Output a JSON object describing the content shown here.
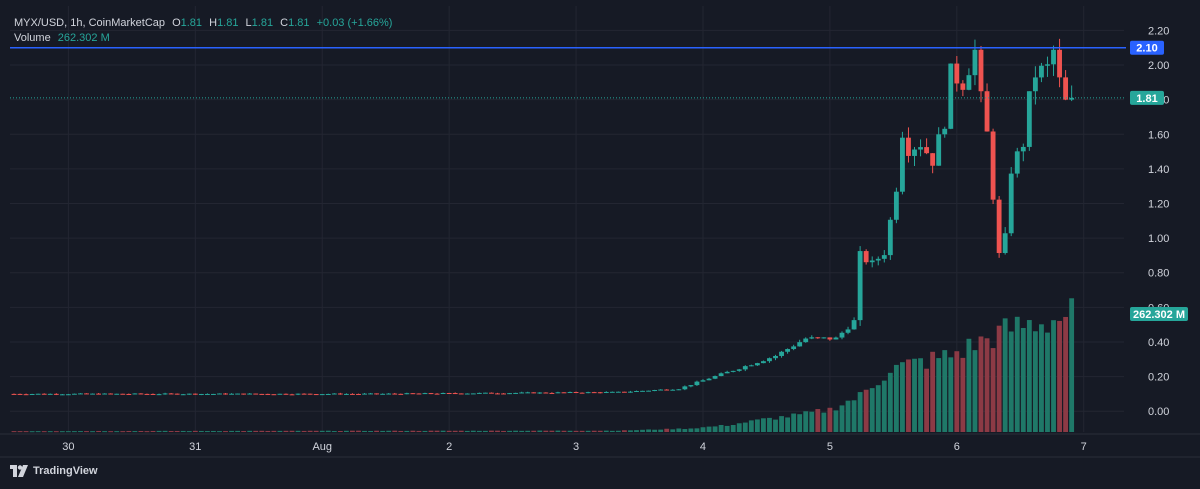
{
  "legend": {
    "symbol": "MYX/USD, 1h, CoinMarketCap",
    "o_label": "O",
    "o_value": "1.81",
    "h_label": "H",
    "h_value": "1.81",
    "l_label": "L",
    "l_value": "1.81",
    "c_label": "C",
    "c_value": "1.81",
    "change": "+0.03 (+1.66%)",
    "volume_label": "Volume",
    "volume_value": "262.302 M"
  },
  "footer": {
    "brand": "TradingView"
  },
  "colors": {
    "background": "#161a25",
    "up": "#26a69a",
    "down": "#ef5350",
    "vol_up": "#1f7868",
    "vol_down": "#8c3a45",
    "hline": "#2962ff",
    "grid": "#232632"
  },
  "chart_data": {
    "type": "candlestick",
    "title": "MYX/USD, 1h, CoinMarketCap",
    "x_tick_labels": [
      "30",
      "31",
      "Aug",
      "2",
      "3",
      "4",
      "5",
      "6",
      "7"
    ],
    "y_tick_labels": [
      "2.20",
      "2.00",
      "1.80",
      "1.60",
      "1.40",
      "1.20",
      "1.00",
      "0.80",
      "0.60",
      "0.40",
      "0.20",
      "0.00"
    ],
    "ylim": [
      -0.12,
      2.26
    ],
    "horizontal_line": {
      "value": 2.1,
      "label": "2.10"
    },
    "last_price": {
      "value": 1.81,
      "label": "1.81"
    },
    "volume_label": {
      "value": 262.302,
      "label": "262.302 M"
    },
    "grid": true,
    "x_index": {
      "start": 0,
      "end": 183,
      "last_candle": 175,
      "day_starts": [
        9,
        30,
        51,
        72,
        93,
        114,
        135,
        156,
        177
      ]
    },
    "price_keypoints": [
      [
        0,
        0.1
      ],
      [
        60,
        0.1
      ],
      [
        100,
        0.11
      ],
      [
        110,
        0.13
      ],
      [
        115,
        0.19
      ],
      [
        121,
        0.26
      ],
      [
        126,
        0.32
      ],
      [
        131,
        0.42
      ],
      [
        136,
        0.42
      ],
      [
        139,
        0.52
      ],
      [
        140,
        0.9
      ],
      [
        142,
        0.85
      ],
      [
        144,
        0.92
      ],
      [
        145,
        1.1
      ],
      [
        146,
        1.3
      ],
      [
        147,
        1.62
      ],
      [
        148,
        1.52
      ],
      [
        150,
        1.55
      ],
      [
        152,
        1.45
      ],
      [
        154,
        1.68
      ],
      [
        155,
        1.95
      ],
      [
        157,
        1.9
      ],
      [
        159,
        2.08
      ],
      [
        160,
        1.8
      ],
      [
        161,
        1.6
      ],
      [
        162,
        1.25
      ],
      [
        163,
        0.9
      ],
      [
        164,
        1.0
      ],
      [
        165,
        1.4
      ],
      [
        167,
        1.55
      ],
      [
        168,
        1.8
      ],
      [
        169,
        1.95
      ],
      [
        171,
        1.98
      ],
      [
        172,
        2.08
      ],
      [
        173,
        1.9
      ],
      [
        174,
        1.78
      ],
      [
        175,
        1.81
      ]
    ],
    "volume_keypoints": [
      [
        0,
        2
      ],
      [
        100,
        3
      ],
      [
        112,
        8
      ],
      [
        118,
        15
      ],
      [
        124,
        28
      ],
      [
        130,
        38
      ],
      [
        135,
        50
      ],
      [
        140,
        80
      ],
      [
        145,
        140
      ],
      [
        150,
        155
      ],
      [
        155,
        170
      ],
      [
        160,
        200
      ],
      [
        165,
        230
      ],
      [
        168,
        240
      ],
      [
        171,
        245
      ],
      [
        175,
        262.302
      ]
    ],
    "volume_range": [
      0,
      560
    ]
  }
}
